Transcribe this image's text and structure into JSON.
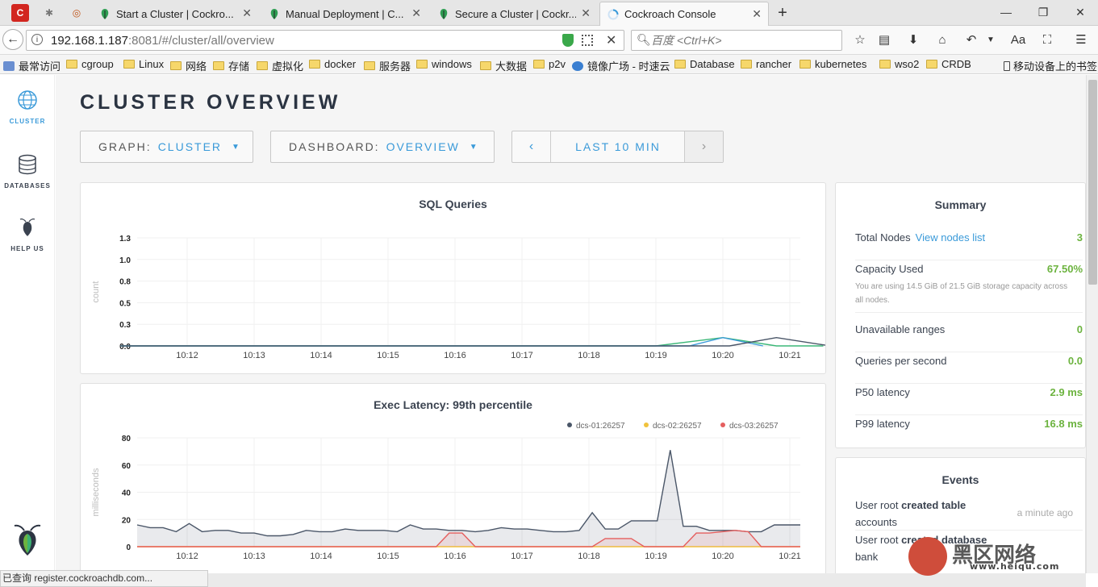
{
  "browser": {
    "tabs": [
      {
        "label": "Start a Cluster | Cockro..."
      },
      {
        "label": "Manual Deployment | C..."
      },
      {
        "label": "Secure a Cluster | Cockr..."
      },
      {
        "label": "Cockroach Console"
      }
    ],
    "url_host": "192.168.1.187",
    "url_rest": ":8081/#/cluster/all/overview",
    "search_placeholder": "百度 <Ctrl+K>",
    "bookmarks": [
      "最常访问",
      "cgroup",
      "Linux",
      "网络",
      "存储",
      "虚拟化",
      "docker",
      "服务器",
      "windows",
      "大数据",
      "p2v",
      "镜像广场 - 时速云",
      "Database",
      "rancher",
      "kubernetes",
      "wso2",
      "CRDB"
    ],
    "mobile_bookmarks": "移动设备上的书签",
    "status_text": "已查询 register.cockroachdb.com..."
  },
  "sidebar": {
    "items": [
      {
        "label": "CLUSTER",
        "icon": "globe-icon"
      },
      {
        "label": "DATABASES",
        "icon": "database-icon"
      },
      {
        "label": "HELP US",
        "icon": "cockroach-icon"
      }
    ]
  },
  "page": {
    "title": "CLUSTER OVERVIEW",
    "graph_label": "GRAPH:",
    "graph_value": "CLUSTER",
    "dashboard_label": "DASHBOARD:",
    "dashboard_value": "OVERVIEW",
    "time_label": "LAST 10 MIN"
  },
  "summary": {
    "title": "Summary",
    "total_nodes_label": "Total Nodes",
    "view_nodes_link": "View nodes list",
    "total_nodes": "3",
    "capacity_label": "Capacity Used",
    "capacity_value": "67.50%",
    "capacity_sub": "You are using 14.5 GiB of 21.5 GiB storage capacity across all nodes.",
    "unavailable_label": "Unavailable ranges",
    "unavailable_value": "0",
    "qps_label": "Queries per second",
    "qps_value": "0.0",
    "p50_label": "P50 latency",
    "p50_value": "2.9 ms",
    "p99_label": "P99 latency",
    "p99_value": "16.8 ms"
  },
  "events": {
    "title": "Events",
    "items": [
      {
        "prefix": "User root ",
        "action": "created table",
        "target": "accounts",
        "time": "a minute ago"
      },
      {
        "prefix": "User root ",
        "action": "created database",
        "target": "bank",
        "time": ""
      }
    ]
  },
  "watermark": {
    "text": "黑区网络",
    "url": "www.heiqu.com"
  },
  "chart_data": [
    {
      "type": "line",
      "title": "SQL Queries",
      "ylabel": "count",
      "ylim": [
        0,
        1.3
      ],
      "yticks": [
        "1.3",
        "1.0",
        "0.8",
        "0.5",
        "0.3",
        "0.0"
      ],
      "xticks": [
        "10:12",
        "10:13",
        "10:14",
        "10:15",
        "10:16",
        "10:17",
        "10:18",
        "10:19",
        "10:20",
        "10:21"
      ],
      "series": [
        {
          "color": "#3cb878",
          "values": [
            [
              10.11,
              0
            ],
            [
              10.19,
              0
            ],
            [
              10.2,
              0.1
            ],
            [
              10.208,
              0
            ],
            [
              10.215,
              0
            ],
            [
              10.21,
              0
            ]
          ]
        },
        {
          "color": "#3a9ad9",
          "values": [
            [
              10.11,
              0
            ],
            [
              10.195,
              0
            ],
            [
              10.2,
              0.1
            ],
            [
              10.206,
              0
            ]
          ]
        },
        {
          "color": "#4a5668",
          "values": [
            [
              10.11,
              0
            ],
            [
              10.201,
              0
            ],
            [
              10.208,
              0.1
            ],
            [
              10.216,
              0
            ]
          ]
        }
      ]
    },
    {
      "type": "area",
      "title": "Exec Latency: 99th percentile",
      "ylabel": "milliseconds",
      "ylim": [
        0,
        80
      ],
      "yticks": [
        "80",
        "60",
        "40",
        "20",
        "0"
      ],
      "xticks": [
        "10:12",
        "10:13",
        "10:14",
        "10:15",
        "10:16",
        "10:17",
        "10:18",
        "10:19",
        "10:20",
        "10:21"
      ],
      "series": [
        {
          "name": "dcs-01:26257",
          "color": "#4a5668",
          "values": [
            16,
            14,
            14,
            11,
            17,
            11,
            12,
            12,
            10,
            10,
            8,
            8,
            9,
            12,
            11,
            11,
            13,
            12,
            12,
            12,
            11,
            16,
            13,
            13,
            12,
            12,
            11,
            12,
            14,
            13,
            13,
            12,
            11,
            11,
            12,
            25,
            13,
            13,
            19,
            19,
            19,
            71,
            15,
            15,
            12,
            12,
            12,
            11,
            11,
            16,
            16,
            16
          ]
        },
        {
          "name": "dcs-02:26257",
          "color": "#f0c23c",
          "values": [
            0,
            0,
            0,
            0,
            0,
            0,
            0,
            0,
            0,
            0,
            0,
            0,
            0,
            0,
            0,
            0,
            0,
            0,
            0,
            0,
            0,
            0,
            0,
            0,
            0,
            0,
            0,
            0,
            0,
            0,
            0,
            0,
            0,
            0,
            0,
            0,
            0,
            0,
            0,
            0,
            0,
            0,
            0,
            0,
            0,
            0,
            0,
            0,
            0,
            0,
            0,
            0
          ]
        },
        {
          "name": "dcs-03:26257",
          "color": "#e55f5f",
          "values": [
            0,
            0,
            0,
            0,
            0,
            0,
            0,
            0,
            0,
            0,
            0,
            0,
            0,
            0,
            0,
            0,
            0,
            0,
            0,
            0,
            0,
            0,
            0,
            0,
            10,
            10,
            0,
            0,
            0,
            0,
            0,
            0,
            0,
            0,
            0,
            0,
            6,
            6,
            6,
            0,
            0,
            0,
            0,
            10,
            10,
            11,
            12,
            11,
            0,
            0,
            0,
            0
          ]
        }
      ]
    }
  ]
}
